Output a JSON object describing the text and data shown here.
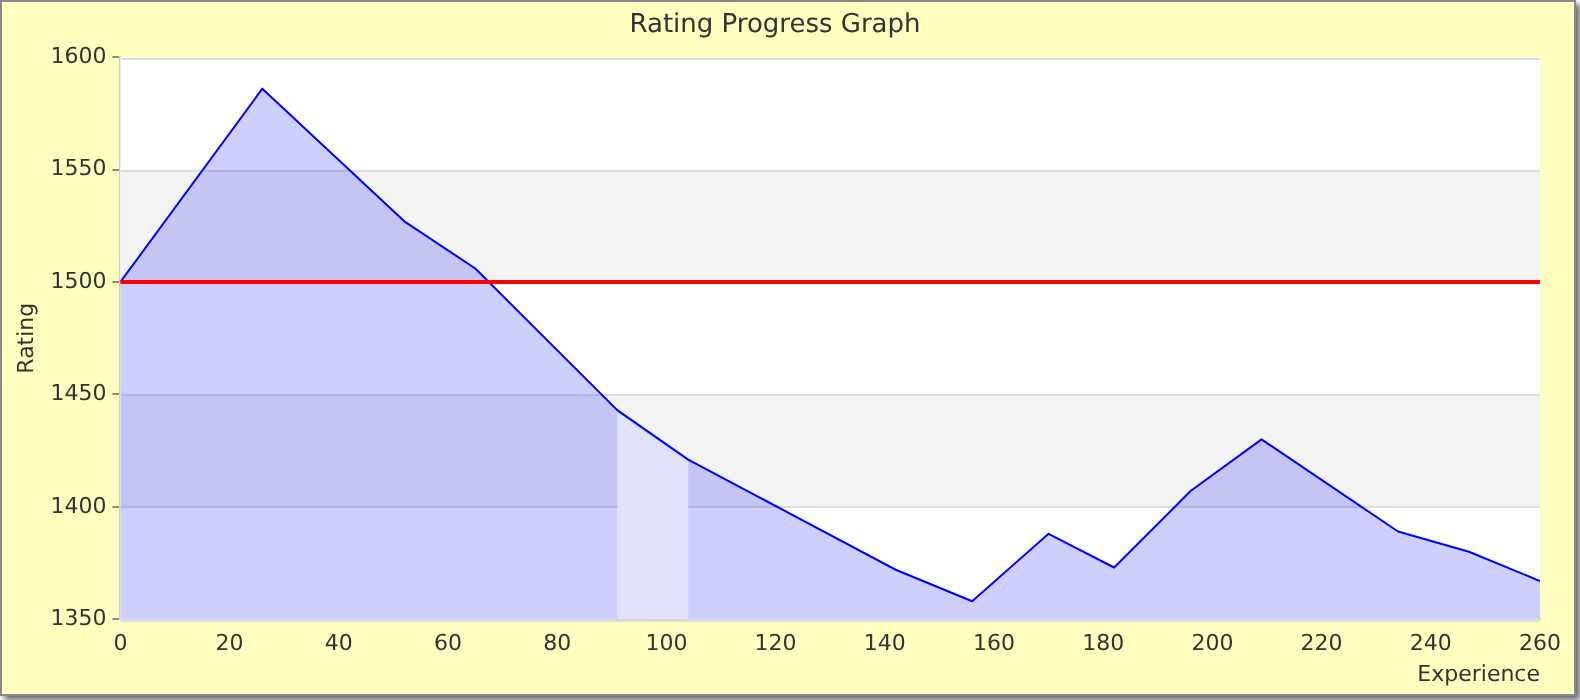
{
  "chart_data": {
    "type": "area",
    "title": "Rating Progress Graph",
    "xlabel": "Experience",
    "ylabel": "Rating",
    "x": [
      0,
      26,
      52,
      65,
      91,
      104,
      142,
      156,
      170,
      182,
      196,
      209,
      234,
      247,
      260
    ],
    "series": [
      {
        "color": "#0000ff",
        "values": [
          1500,
          1586,
          1527,
          1506,
          1443,
          1421,
          1372,
          1358,
          1388,
          1373,
          1407,
          1430,
          1389,
          1380,
          1367
        ]
      }
    ],
    "xlim": [
      0,
      260
    ],
    "xticks": [
      0,
      20,
      40,
      60,
      80,
      100,
      120,
      140,
      160,
      180,
      200,
      220,
      240,
      260
    ],
    "ylim": [
      1350,
      1600
    ],
    "yticks": [
      1350,
      1400,
      1450,
      1500,
      1550,
      1600
    ],
    "ref_lines": [
      {
        "axis": "y",
        "value": 1500,
        "color": "#ff0000"
      }
    ],
    "bands": [
      {
        "axis": "x",
        "from": 91,
        "to": 104,
        "color": "#e2e2fc"
      }
    ],
    "grid": "y",
    "legend": false,
    "marker": "none"
  }
}
